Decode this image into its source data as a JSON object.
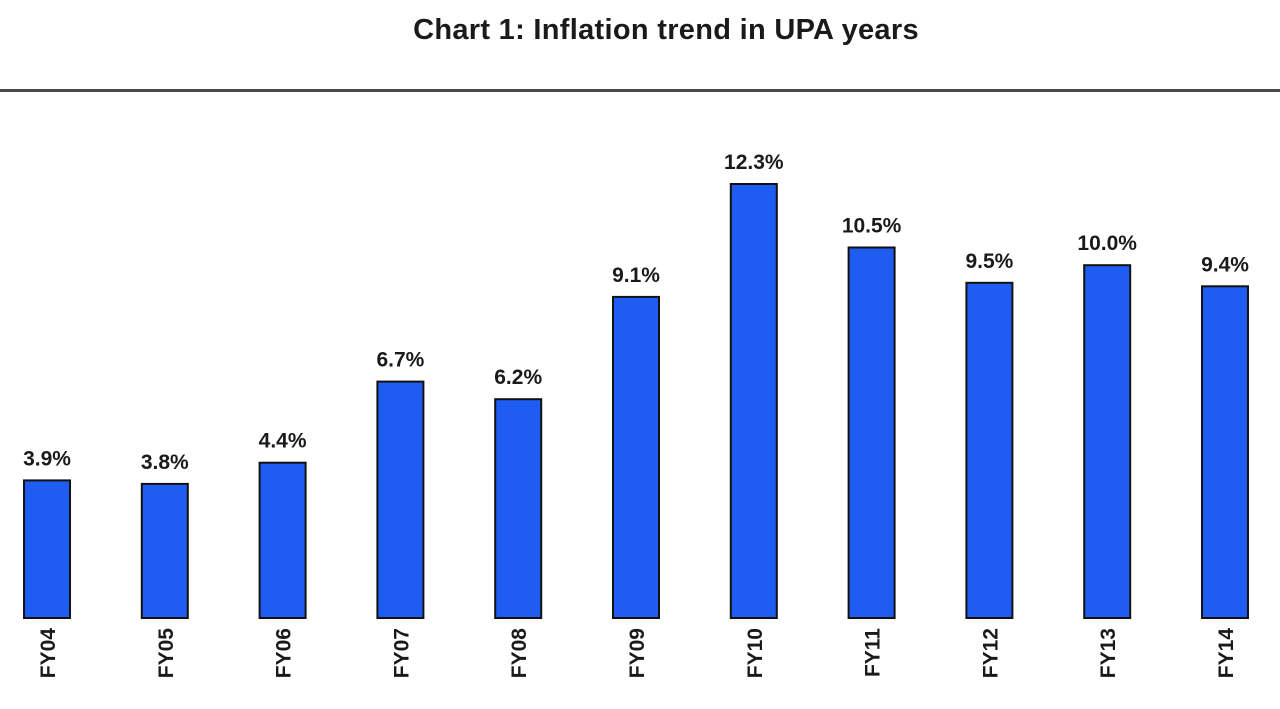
{
  "chart_data": {
    "type": "bar",
    "title": "Chart 1:  Inflation trend in UPA years",
    "xlabel": "",
    "ylabel": "",
    "categories": [
      "FY04",
      "FY05",
      "FY06",
      "FY07",
      "FY08",
      "FY09",
      "FY10",
      "FY11",
      "FY12",
      "FY13",
      "FY14"
    ],
    "values": [
      3.9,
      3.8,
      4.4,
      6.7,
      6.2,
      9.1,
      12.3,
      10.5,
      9.5,
      10.0,
      9.4
    ],
    "value_labels": [
      "3.9%",
      "3.8%",
      "4.4%",
      "6.7%",
      "6.2%",
      "9.1%",
      "12.3%",
      "10.5%",
      "9.5%",
      "10.0%",
      "9.4%"
    ],
    "ylim": [
      0,
      12.3
    ],
    "grid": false,
    "bar_color": "#1f5cf2"
  }
}
